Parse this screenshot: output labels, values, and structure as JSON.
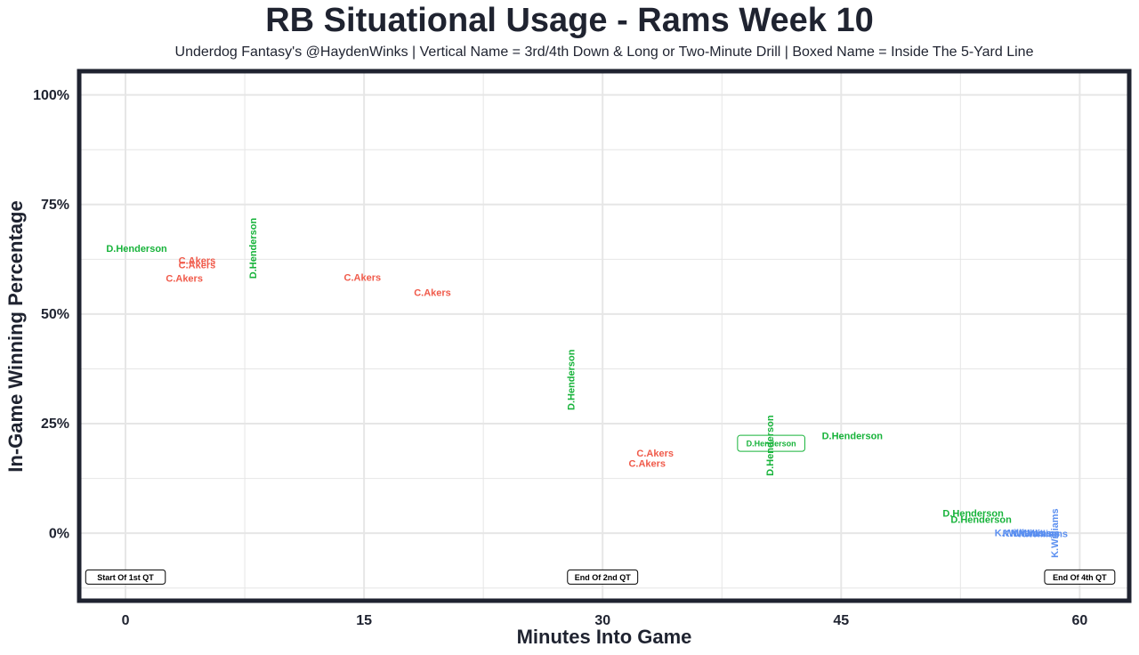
{
  "title": "RB Situational Usage - Rams Week 10",
  "subtitle": "Underdog Fantasy's @HaydenWinks | Vertical Name = 3rd/4th Down & Long or Two-Minute Drill | Boxed Name = Inside The 5-Yard Line",
  "chart_data": {
    "type": "scatter",
    "xlabel": "Minutes Into Game",
    "ylabel": "In-Game Winning Percentage",
    "xlim": [
      -2.8,
      63
    ],
    "ylim": [
      -15,
      105
    ],
    "x_ticks": [
      0,
      15,
      30,
      45,
      60
    ],
    "x_tick_labels": [
      "0",
      "15",
      "30",
      "45",
      "60"
    ],
    "y_ticks": [
      0,
      25,
      50,
      75,
      100
    ],
    "y_tick_labels": [
      "0%",
      "25%",
      "50%",
      "75%",
      "100%"
    ],
    "grid": true,
    "colors": {
      "D.Henderson": "#17b33a",
      "C.Akers": "#f05a4a",
      "K.Williams": "#5b8ff0",
      "frame": "#1f2330",
      "grid": "#e6e6e6"
    },
    "points": [
      {
        "player": "D.Henderson",
        "x": 0.7,
        "y": 65.0,
        "style": "normal"
      },
      {
        "player": "C.Akers",
        "x": 4.5,
        "y": 62.3,
        "style": "normal"
      },
      {
        "player": "C.Akers",
        "x": 4.5,
        "y": 61.2,
        "style": "normal"
      },
      {
        "player": "C.Akers",
        "x": 3.7,
        "y": 58.2,
        "style": "normal"
      },
      {
        "player": "D.Henderson",
        "x": 8.0,
        "y": 65.0,
        "style": "vertical"
      },
      {
        "player": "C.Akers",
        "x": 14.9,
        "y": 58.4,
        "style": "normal"
      },
      {
        "player": "C.Akers",
        "x": 19.3,
        "y": 55.0,
        "style": "normal"
      },
      {
        "player": "D.Henderson",
        "x": 28.0,
        "y": 35.0,
        "style": "vertical"
      },
      {
        "player": "C.Akers",
        "x": 33.3,
        "y": 18.3,
        "style": "normal"
      },
      {
        "player": "C.Akers",
        "x": 32.8,
        "y": 16.0,
        "style": "normal"
      },
      {
        "player": "D.Henderson",
        "x": 40.6,
        "y": 20.5,
        "style": "boxed"
      },
      {
        "player": "D.Henderson",
        "x": 40.5,
        "y": 20.0,
        "style": "vertical"
      },
      {
        "player": "D.Henderson",
        "x": 45.7,
        "y": 22.3,
        "style": "normal"
      },
      {
        "player": "D.Henderson",
        "x": 53.3,
        "y": 4.6,
        "style": "normal"
      },
      {
        "player": "D.Henderson",
        "x": 53.8,
        "y": 3.2,
        "style": "normal"
      },
      {
        "player": "K.Williams",
        "x": 56.2,
        "y": 0.1,
        "style": "normal"
      },
      {
        "player": "K.Williams",
        "x": 56.7,
        "y": 0.0,
        "style": "normal"
      },
      {
        "player": "K.Williams",
        "x": 57.2,
        "y": 0.0,
        "style": "normal"
      },
      {
        "player": "K.Williams",
        "x": 57.7,
        "y": -0.1,
        "style": "normal"
      },
      {
        "player": "K.Williams",
        "x": 58.4,
        "y": 0.0,
        "style": "vertical"
      }
    ],
    "quarter_markers": [
      {
        "x": 0,
        "y": -10,
        "label": "Start Of 1st QT"
      },
      {
        "x": 30,
        "y": -10,
        "label": "End Of 2nd QT"
      },
      {
        "x": 60,
        "y": -10,
        "label": "End Of 4th QT"
      }
    ]
  }
}
